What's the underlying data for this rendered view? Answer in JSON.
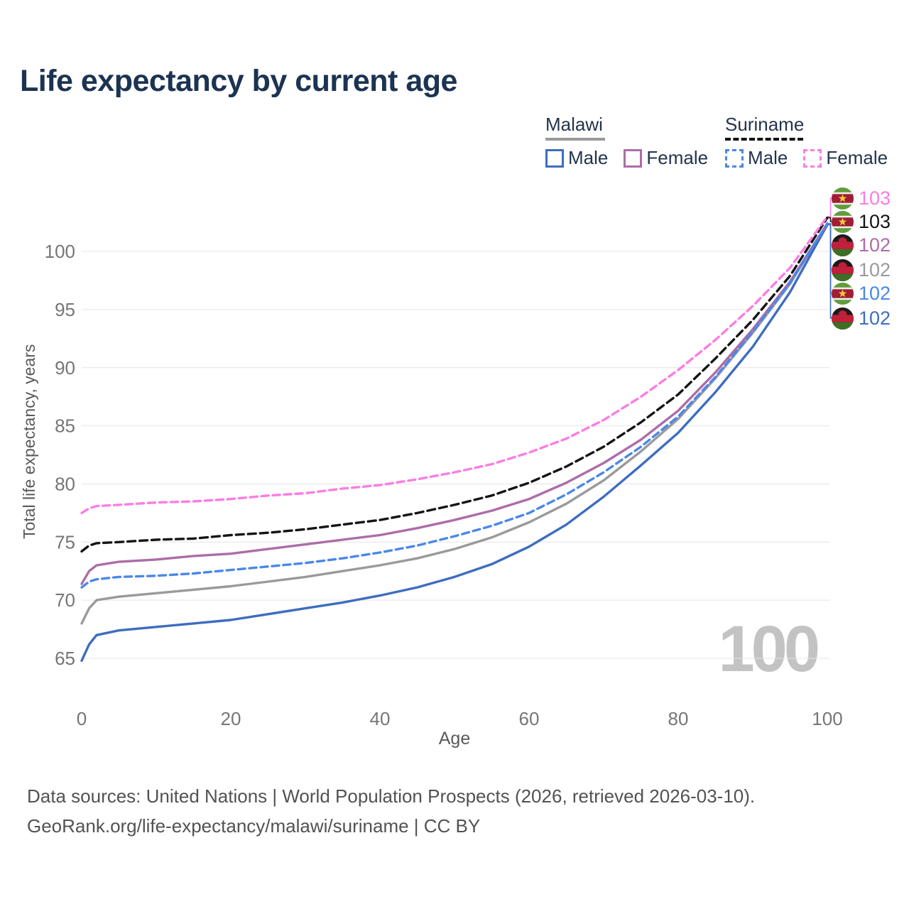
{
  "title": "Life expectancy by current age",
  "watermark": "100",
  "legend": {
    "malawi": {
      "label": "Malawi",
      "line_color": "#9a9a9a",
      "items": [
        {
          "label": "Male",
          "color": "#3d6dbf"
        },
        {
          "label": "Female",
          "color": "#ad6ca8"
        }
      ]
    },
    "suriname": {
      "label": "Suriname",
      "line_color": "#141414",
      "items": [
        {
          "label": "Male",
          "color": "#4b87ea"
        },
        {
          "label": "Female",
          "color": "#fc7de2"
        }
      ]
    }
  },
  "flags": {
    "suriname": {
      "green": "#619c3e",
      "white": "#f2f0ec",
      "red": "#a01d35",
      "yellow": "#f0c93c"
    },
    "malawi": {
      "black": "#1a1a1a",
      "red": "#c2203a",
      "green": "#3c7024"
    }
  },
  "chart_data": {
    "type": "line",
    "title": "Life expectancy by current age",
    "xlabel": "Age",
    "ylabel": "Total life expectancy, years",
    "xlim": [
      0,
      100
    ],
    "ylim": [
      63,
      104
    ],
    "xticks": [
      0,
      20,
      40,
      60,
      80,
      100
    ],
    "yticks": [
      65,
      70,
      75,
      80,
      85,
      90,
      95,
      100
    ],
    "grid": "horizontal",
    "legend_position": "top-right",
    "x": [
      0,
      1,
      2,
      5,
      10,
      15,
      20,
      25,
      30,
      35,
      40,
      45,
      50,
      55,
      60,
      65,
      70,
      75,
      80,
      85,
      90,
      95,
      100
    ],
    "series": [
      {
        "id": "malawi_all",
        "name": "Malawi (both sexes)",
        "country": "Malawi",
        "color": "#9a9a9a",
        "dash": null,
        "values": [
          68.0,
          69.3,
          70.0,
          70.3,
          70.6,
          70.9,
          71.2,
          71.6,
          72.0,
          72.5,
          73.0,
          73.6,
          74.4,
          75.4,
          76.7,
          78.3,
          80.3,
          82.8,
          85.6,
          89.1,
          93.0,
          97.2,
          102.4
        ]
      },
      {
        "id": "malawi_male",
        "name": "Malawi Male",
        "country": "Malawi",
        "color": "#3d6dbf",
        "dash": null,
        "values": [
          64.8,
          66.2,
          67.0,
          67.4,
          67.7,
          68.0,
          68.3,
          68.8,
          69.3,
          69.8,
          70.4,
          71.1,
          72.0,
          73.1,
          74.6,
          76.5,
          78.9,
          81.6,
          84.4,
          87.9,
          91.8,
          96.5,
          102.3
        ]
      },
      {
        "id": "malawi_female",
        "name": "Malawi Female",
        "country": "Malawi",
        "color": "#ad6ca8",
        "dash": null,
        "values": [
          71.4,
          72.5,
          73.0,
          73.3,
          73.5,
          73.8,
          74.0,
          74.4,
          74.8,
          75.2,
          75.6,
          76.2,
          76.9,
          77.7,
          78.7,
          80.1,
          81.8,
          83.8,
          86.3,
          89.6,
          93.3,
          97.4,
          102.4
        ]
      },
      {
        "id": "suriname_male",
        "name": "Suriname Male",
        "country": "Suriname",
        "color": "#4b87ea",
        "dash": "10 6",
        "values": [
          71.1,
          71.6,
          71.8,
          72.0,
          72.1,
          72.3,
          72.6,
          72.9,
          73.2,
          73.6,
          74.1,
          74.7,
          75.5,
          76.4,
          77.5,
          79.1,
          81.0,
          83.2,
          85.8,
          89.2,
          93.1,
          97.3,
          102.4
        ]
      },
      {
        "id": "suriname_all",
        "name": "Suriname (both sexes)",
        "country": "Suriname",
        "color": "#141414",
        "dash": "11 6",
        "values": [
          74.2,
          74.7,
          74.9,
          75.0,
          75.2,
          75.3,
          75.6,
          75.8,
          76.1,
          76.5,
          76.9,
          77.5,
          78.2,
          79.0,
          80.1,
          81.5,
          83.2,
          85.3,
          87.7,
          90.8,
          94.1,
          97.9,
          102.9
        ]
      },
      {
        "id": "suriname_female",
        "name": "Suriname Female",
        "country": "Suriname",
        "color": "#fc7de2",
        "dash": "10 6",
        "values": [
          77.5,
          77.9,
          78.1,
          78.2,
          78.4,
          78.5,
          78.7,
          79.0,
          79.2,
          79.6,
          79.9,
          80.4,
          81.0,
          81.7,
          82.7,
          83.9,
          85.5,
          87.5,
          89.8,
          92.4,
          95.3,
          98.6,
          103.0
        ]
      }
    ],
    "end_labels": [
      {
        "flag": "suriname",
        "text": "103",
        "color": "#fc7de2",
        "series": "suriname_female"
      },
      {
        "flag": "suriname",
        "text": "103",
        "color": "#141414",
        "series": "suriname_all"
      },
      {
        "flag": "malawi",
        "text": "102",
        "color": "#ad6ca8",
        "series": "malawi_female"
      },
      {
        "flag": "malawi",
        "text": "102",
        "color": "#9a9a9a",
        "series": "malawi_all"
      },
      {
        "flag": "suriname",
        "text": "102",
        "color": "#4b87ea",
        "series": "suriname_male"
      },
      {
        "flag": "malawi",
        "text": "102",
        "color": "#3d6dbf",
        "series": "malawi_male"
      }
    ]
  },
  "footer": {
    "line1": "Data sources: United Nations | World Population Prospects (2026, retrieved 2026-03-10).",
    "line2": "GeoRank.org/life-expectancy/malawi/suriname | CC BY"
  }
}
